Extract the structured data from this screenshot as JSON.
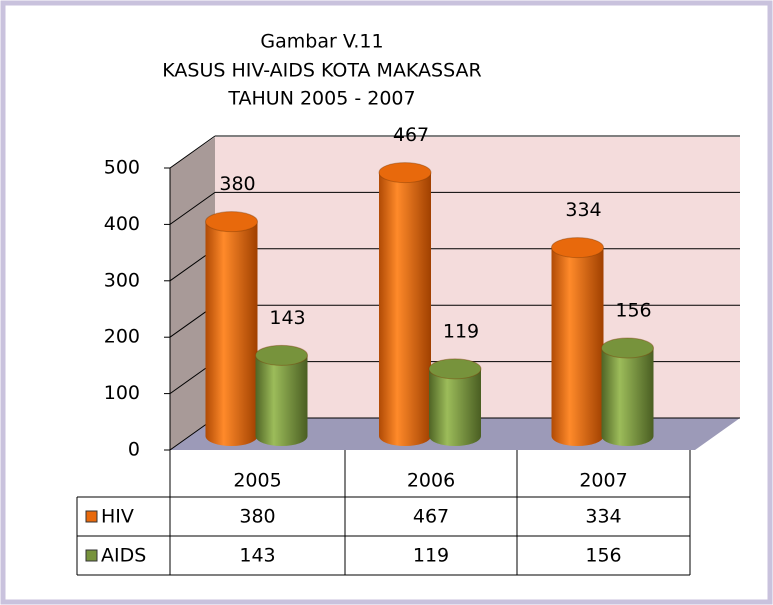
{
  "chart_data": {
    "type": "bar",
    "title": [
      "Gambar V.11",
      "KASUS HIV-AIDS KOTA MAKASSAR",
      "TAHUN 2005 - 2007"
    ],
    "categories": [
      "2005",
      "2006",
      "2007"
    ],
    "series": [
      {
        "name": "HIV",
        "color": "#e8690c",
        "values": [
          380,
          467,
          334
        ]
      },
      {
        "name": "AIDS",
        "color": "#77933c",
        "values": [
          143,
          119,
          156
        ]
      }
    ],
    "ylim": [
      0,
      500
    ],
    "yticks": [
      0,
      100,
      200,
      300,
      400,
      500
    ],
    "grid": true
  }
}
